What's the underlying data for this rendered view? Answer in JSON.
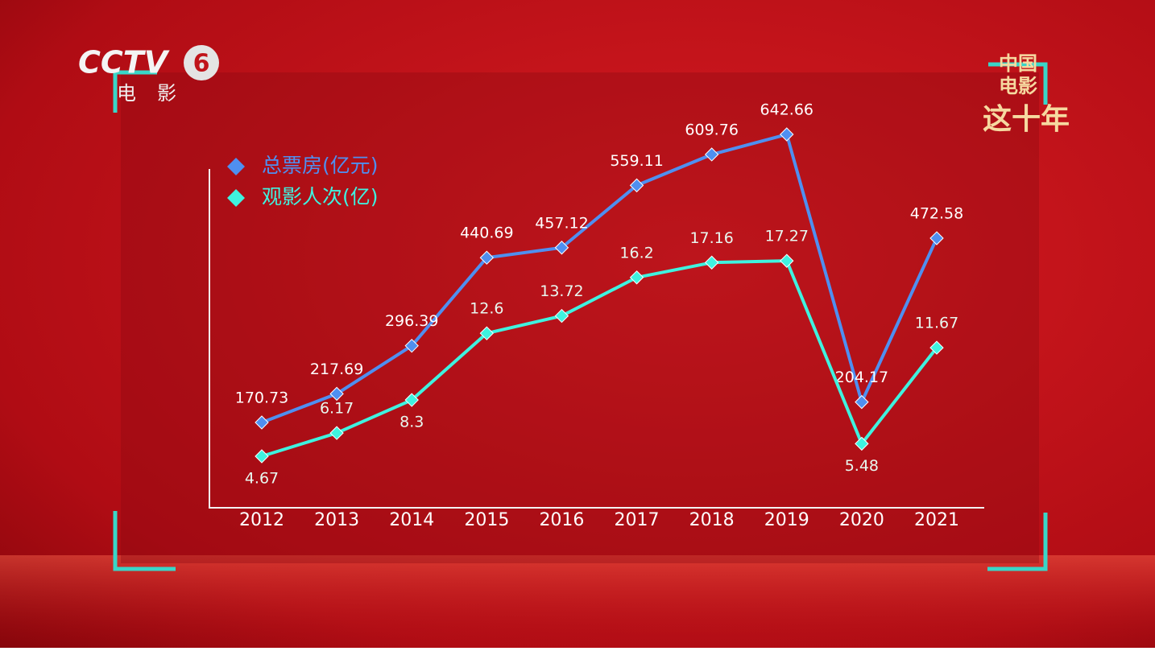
{
  "logo": {
    "channel": "CCTV",
    "number": "6",
    "name": "电影"
  },
  "program": {
    "line1": "中国",
    "line2": "电影",
    "line3": "这十年"
  },
  "chart_data": {
    "type": "line",
    "categories": [
      "2012",
      "2013",
      "2014",
      "2015",
      "2016",
      "2017",
      "2018",
      "2019",
      "2020",
      "2021"
    ],
    "series": [
      {
        "name": "总票房(亿元)",
        "color": "#4f8ff0",
        "values": [
          170.73,
          217.69,
          296.39,
          440.69,
          457.12,
          559.11,
          609.76,
          642.66,
          204.17,
          472.58
        ]
      },
      {
        "name": "观影人次(亿)",
        "color": "#3ff2df",
        "axis": "y2",
        "values": [
          4.67,
          6.17,
          8.3,
          12.6,
          13.72,
          16.2,
          17.16,
          17.27,
          5.48,
          11.67
        ]
      }
    ],
    "ylim": [
      31,
      731
    ],
    "y2lim": [
      1.35,
      28.9
    ],
    "legend": "upper left"
  }
}
